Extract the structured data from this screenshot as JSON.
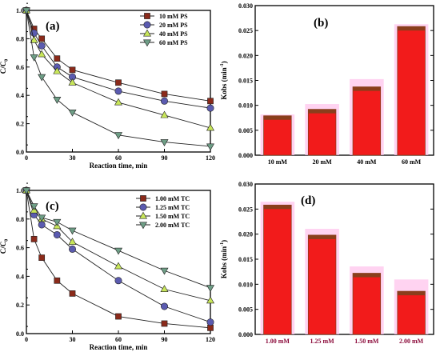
{
  "colors": {
    "series": [
      "#8B2A1A",
      "#5B5BB0",
      "#C8E65A",
      "#6E9E86"
    ],
    "bar_fill": "#F21B1B",
    "bar_cap": "#8A3E1C",
    "bar_halo": "#FFC4EC",
    "category_label_c": "#000000",
    "category_label_d": "#8B0A3A"
  },
  "chart_data": [
    {
      "panel": "(a)",
      "type": "line",
      "xlabel": "Reaction time, min",
      "ylabel": "C/C",
      "ylabel_sub": "0",
      "xlim": [
        0,
        120
      ],
      "ylim": [
        0,
        1.0
      ],
      "xticks": [
        0,
        30,
        60,
        90,
        120
      ],
      "yticks": [
        0.0,
        0.2,
        0.4,
        0.6,
        0.8,
        1.0
      ],
      "ytick_labels": [
        "0.0",
        "0.2",
        "0.4",
        "0.6",
        "0.8",
        "1.0"
      ],
      "x": [
        0,
        5,
        10,
        20,
        30,
        60,
        90,
        120
      ],
      "legend": "top-right",
      "series": [
        {
          "name": "10 mM PS",
          "marker": "square",
          "values": [
            1.0,
            0.87,
            0.8,
            0.66,
            0.58,
            0.49,
            0.41,
            0.36
          ]
        },
        {
          "name": "20 mM PS",
          "marker": "circle",
          "values": [
            1.0,
            0.84,
            0.75,
            0.6,
            0.53,
            0.43,
            0.36,
            0.31
          ]
        },
        {
          "name": "40 mM PS",
          "marker": "triangle-up",
          "values": [
            1.0,
            0.79,
            0.69,
            0.57,
            0.49,
            0.35,
            0.26,
            0.17
          ]
        },
        {
          "name": "60 mM PS",
          "marker": "triangle-down",
          "values": [
            1.0,
            0.67,
            0.53,
            0.37,
            0.28,
            0.12,
            0.07,
            0.04
          ]
        }
      ]
    },
    {
      "panel": "(b)",
      "type": "bar",
      "ylabel": "Kobs (min",
      "ylabel_sup": "-1",
      "ylabel_end": ")",
      "ylim": [
        0,
        0.03
      ],
      "yticks": [
        0.0,
        0.005,
        0.01,
        0.015,
        0.02,
        0.025,
        0.03
      ],
      "ytick_labels": [
        "0.000",
        "0.005",
        "0.010",
        "0.015",
        "0.020",
        "0.025",
        "0.030"
      ],
      "categories": [
        "10 mM",
        "20 mM",
        "40 mM",
        "60 mM"
      ],
      "values": [
        0.0079,
        0.0092,
        0.0137,
        0.0258
      ],
      "errors": [
        0.0001,
        0.0009,
        0.0014,
        0.0003
      ]
    },
    {
      "panel": "(c)",
      "type": "line",
      "xlabel": "Reaction time, min",
      "ylabel": "C/C",
      "ylabel_sub": "0",
      "xlim": [
        0,
        120
      ],
      "ylim": [
        0,
        1.0
      ],
      "xticks": [
        0,
        30,
        60,
        90,
        120
      ],
      "yticks": [
        0.0,
        0.2,
        0.4,
        0.6,
        0.8,
        1.0
      ],
      "ytick_labels": [
        "0.0",
        "0.2",
        "0.4",
        "0.6",
        "0.8",
        "1.0"
      ],
      "x": [
        0,
        5,
        10,
        20,
        30,
        60,
        90,
        120
      ],
      "legend": "top-right",
      "series": [
        {
          "name": "1.00 mM TC",
          "marker": "square",
          "values": [
            1.0,
            0.66,
            0.53,
            0.37,
            0.28,
            0.12,
            0.07,
            0.04
          ]
        },
        {
          "name": "1.25 mM TC",
          "marker": "circle",
          "values": [
            1.0,
            0.83,
            0.76,
            0.69,
            0.59,
            0.37,
            0.19,
            0.08
          ]
        },
        {
          "name": "1.50 mM TC",
          "marker": "triangle-up",
          "values": [
            1.0,
            0.86,
            0.8,
            0.75,
            0.64,
            0.47,
            0.31,
            0.23
          ]
        },
        {
          "name": "2.00 mM TC",
          "marker": "triangle-down",
          "values": [
            1.0,
            0.89,
            0.81,
            0.78,
            0.72,
            0.58,
            0.44,
            0.32
          ]
        }
      ]
    },
    {
      "panel": "(d)",
      "type": "bar",
      "ylabel": "Kobs (min",
      "ylabel_sup": "-1",
      "ylabel_end": ")",
      "ylim": [
        0,
        0.03
      ],
      "yticks": [
        0.0,
        0.005,
        0.01,
        0.015,
        0.02,
        0.025,
        0.03
      ],
      "ytick_labels": [
        "0.000",
        "0.005",
        "0.010",
        "0.015",
        "0.020",
        "0.025",
        "0.030"
      ],
      "categories": [
        "1.00 mM",
        "1.25 mM",
        "1.50 mM",
        "2.00 mM"
      ],
      "values": [
        0.0258,
        0.0198,
        0.0122,
        0.0086
      ],
      "errors": [
        0.0005,
        0.0011,
        0.0012,
        0.0022
      ]
    }
  ]
}
